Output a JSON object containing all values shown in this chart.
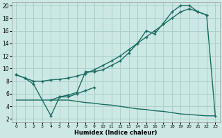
{
  "xlabel": "Humidex (Indice chaleur)",
  "bg_color": "#cce8e4",
  "grid_color": "#aacfcb",
  "line_color": "#1a6b60",
  "xlim": [
    -0.5,
    23.5
  ],
  "ylim": [
    1.5,
    20.5
  ],
  "yticks": [
    2,
    4,
    6,
    8,
    10,
    12,
    14,
    16,
    18,
    20
  ],
  "xticks": [
    0,
    1,
    2,
    3,
    4,
    5,
    6,
    7,
    8,
    9,
    10,
    11,
    12,
    13,
    14,
    15,
    16,
    17,
    18,
    19,
    20,
    21,
    22,
    23
  ],
  "curve_main_x": [
    4,
    5,
    6,
    7,
    8,
    9,
    10,
    11,
    12,
    13,
    14,
    15,
    16,
    17,
    18,
    19,
    20,
    21,
    22,
    23
  ],
  "curve_main_y": [
    5.0,
    5.5,
    5.8,
    6.2,
    9.5,
    9.5,
    9.8,
    10.5,
    11.2,
    12.5,
    14.0,
    16.0,
    15.5,
    17.2,
    19.0,
    20.0,
    20.0,
    19.0,
    18.5,
    2.5
  ],
  "curve_avg_x": [
    0,
    1,
    2,
    3,
    4,
    5,
    6,
    7,
    8,
    9,
    10,
    11,
    12,
    13,
    14,
    15,
    16,
    17,
    18,
    19,
    20,
    21,
    22
  ],
  "curve_avg_y": [
    9.0,
    8.5,
    8.0,
    8.0,
    8.2,
    8.3,
    8.5,
    8.8,
    9.2,
    9.8,
    10.5,
    11.2,
    12.0,
    13.0,
    14.0,
    15.0,
    16.0,
    17.0,
    18.0,
    19.0,
    19.5,
    19.0,
    18.5
  ],
  "curve_dip_x": [
    0,
    1,
    2,
    4,
    5,
    6,
    7,
    8,
    9
  ],
  "curve_dip_y": [
    9.0,
    8.5,
    7.5,
    2.5,
    5.5,
    5.5,
    6.0,
    6.5,
    7.0
  ],
  "curve_bot_x": [
    0,
    4,
    5,
    6,
    7,
    8,
    9,
    10,
    11,
    12,
    13,
    14,
    15,
    16,
    17,
    18,
    19,
    20,
    21,
    22,
    23
  ],
  "curve_bot_y": [
    5.0,
    5.0,
    5.0,
    5.0,
    4.8,
    4.6,
    4.5,
    4.3,
    4.2,
    4.0,
    3.8,
    3.6,
    3.5,
    3.3,
    3.2,
    3.0,
    2.8,
    2.7,
    2.6,
    2.5,
    2.5
  ]
}
